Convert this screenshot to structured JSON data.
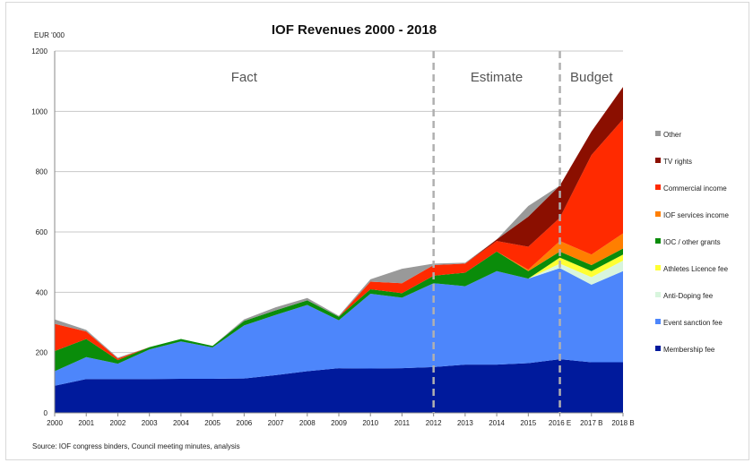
{
  "chart_data": {
    "type": "area",
    "stacked": true,
    "title": "IOF Revenues 2000 - 2018",
    "ylabel": "EUR '000",
    "xlabel": "",
    "ylim": [
      0,
      1200
    ],
    "yticks": [
      0,
      200,
      400,
      600,
      800,
      1000,
      1200
    ],
    "grid": true,
    "legend": "right",
    "categories": [
      "2000",
      "2001",
      "2002",
      "2003",
      "2004",
      "2005",
      "2006",
      "2007",
      "2008",
      "2009",
      "2010",
      "2011",
      "2012",
      "2013",
      "2014",
      "2015",
      "2016 E",
      "2017 B",
      "2018 B"
    ],
    "periods": [
      {
        "label": "Fact"
      },
      {
        "label": "Estimate",
        "from": "2012"
      },
      {
        "label": "Budget",
        "from": "2016 E"
      }
    ],
    "series": [
      {
        "name": "Membership fee",
        "color": "#001a9c",
        "values": [
          90,
          112,
          112,
          112,
          113,
          113,
          114,
          125,
          138,
          148,
          147,
          148,
          152,
          160,
          160,
          165,
          178,
          168,
          168
        ]
      },
      {
        "name": "Event sanction fee",
        "color": "#4d86fb",
        "values": [
          48,
          73,
          51,
          98,
          124,
          104,
          176,
          200,
          220,
          159,
          248,
          234,
          278,
          260,
          310,
          280,
          302,
          257,
          302
        ]
      },
      {
        "name": "Anti-Doping fee",
        "color": "#d8f5dd",
        "values": [
          0,
          0,
          0,
          0,
          0,
          0,
          0,
          0,
          0,
          0,
          0,
          0,
          0,
          0,
          0,
          0,
          15,
          25,
          35
        ]
      },
      {
        "name": "Athletes Licence fee",
        "color": "#ffff33",
        "values": [
          0,
          0,
          0,
          0,
          0,
          0,
          0,
          0,
          0,
          0,
          0,
          0,
          0,
          0,
          0,
          0,
          20,
          20,
          20
        ]
      },
      {
        "name": "IOC / other grants",
        "color": "#0a8c0a",
        "values": [
          67,
          60,
          12,
          8,
          8,
          5,
          15,
          15,
          15,
          12,
          15,
          15,
          25,
          45,
          65,
          25,
          20,
          20,
          20
        ]
      },
      {
        "name": "IOF services income",
        "color": "#ff7f00",
        "values": [
          0,
          0,
          0,
          0,
          0,
          0,
          0,
          0,
          0,
          0,
          0,
          0,
          0,
          0,
          0,
          5,
          35,
          35,
          50
        ]
      },
      {
        "name": "Commercial income",
        "color": "#ff2a00",
        "values": [
          90,
          25,
          5,
          0,
          0,
          0,
          0,
          0,
          0,
          0,
          25,
          33,
          35,
          30,
          35,
          76,
          77,
          330,
          379
        ]
      },
      {
        "name": "TV rights",
        "color": "#8b0f00",
        "values": [
          0,
          0,
          0,
          0,
          0,
          0,
          0,
          0,
          0,
          0,
          0,
          0,
          0,
          0,
          5,
          100,
          107,
          78,
          107
        ]
      },
      {
        "name": "Other",
        "color": "#999999",
        "values": [
          15,
          5,
          3,
          0,
          0,
          0,
          5,
          10,
          8,
          3,
          8,
          48,
          5,
          3,
          0,
          35,
          0,
          0,
          0
        ]
      }
    ]
  },
  "source": "Source: IOF congress binders, Council meeting minutes, analysis"
}
